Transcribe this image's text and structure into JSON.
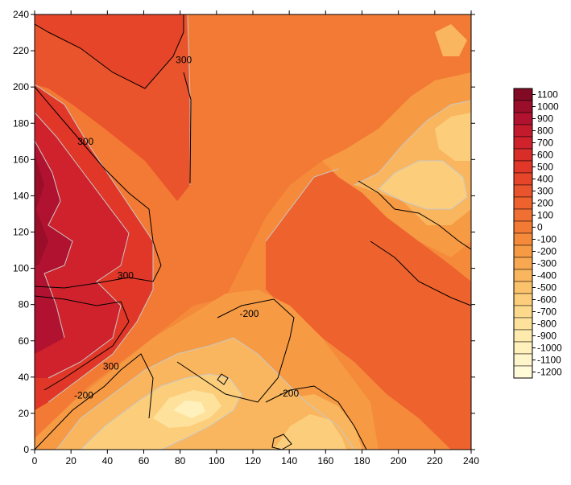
{
  "chart_data": {
    "type": "heatmap",
    "subtype": "filled-contour",
    "title": "",
    "xlabel": "",
    "ylabel": "",
    "xlim": [
      0,
      240
    ],
    "ylim": [
      0,
      240
    ],
    "x_ticks": [
      0,
      20,
      40,
      60,
      80,
      100,
      120,
      140,
      160,
      180,
      200,
      220,
      240
    ],
    "y_ticks": [
      0,
      20,
      40,
      60,
      80,
      100,
      120,
      140,
      160,
      180,
      200,
      220,
      240
    ],
    "grid": false,
    "legend_position": "right",
    "colorbar_levels": [
      1100,
      1000,
      900,
      800,
      700,
      600,
      500,
      400,
      300,
      200,
      100,
      0,
      -100,
      -200,
      -300,
      -400,
      -500,
      -600,
      -700,
      -800,
      -900,
      -1000,
      -1100,
      -1200
    ],
    "colorbar_colors": [
      "#820a24",
      "#9a0e2a",
      "#b11230",
      "#c31a2c",
      "#cf222c",
      "#d92d2a",
      "#e03728",
      "#e6452a",
      "#ea542c",
      "#ee622e",
      "#f06f32",
      "#f27a34",
      "#f48a3a",
      "#f69a44",
      "#f8a850",
      "#f9b65e",
      "#fbc26c",
      "#fcce7c",
      "#fdd98c",
      "#fee29c",
      "#feeaac",
      "#fff0bc",
      "#fff5ca",
      "#fffad8"
    ],
    "contour_labels": [
      {
        "text": "300",
        "x": 82,
        "y": 215
      },
      {
        "text": "300",
        "x": 28,
        "y": 170
      },
      {
        "text": "300",
        "x": 50,
        "y": 96
      },
      {
        "text": "300",
        "x": 42,
        "y": 46
      },
      {
        "text": "-200",
        "x": 118,
        "y": 75
      },
      {
        "text": "-200",
        "x": 27,
        "y": 30
      },
      {
        "text": "-200",
        "x": 140,
        "y": 31
      }
    ]
  }
}
